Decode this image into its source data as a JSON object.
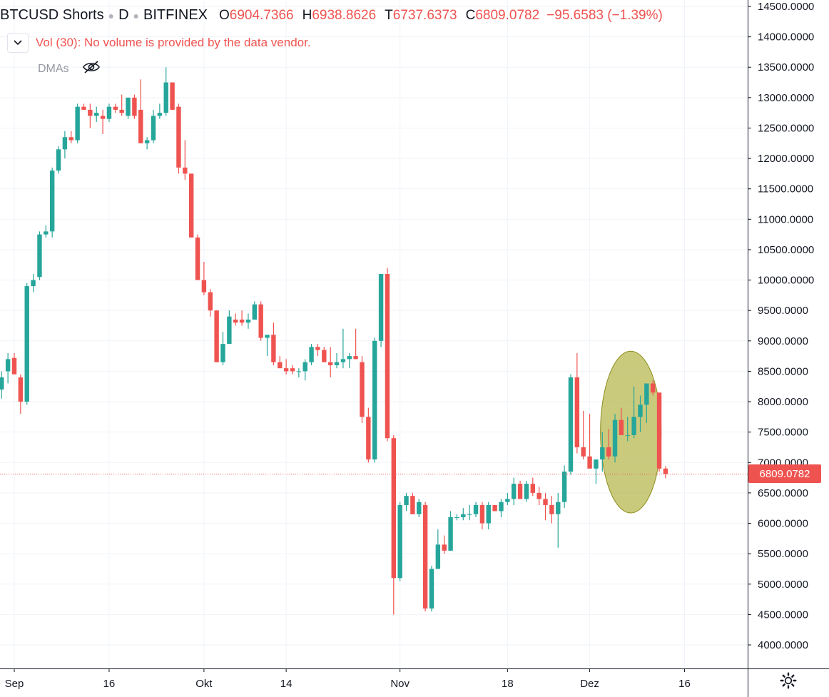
{
  "header": {
    "symbol": "BTCUSD Shorts",
    "interval": "D",
    "exchange": "BITFINEX",
    "open_label": "O",
    "open": "6904.7366",
    "high_label": "H",
    "high": "6938.8626",
    "low_label": "T",
    "low": "6737.6373",
    "close_label": "C",
    "close": "6809.0782",
    "change": "−95.6583 (−1.39%)"
  },
  "volume_note": "Vol (30): No volume is provided by the data vendor.",
  "indicator": "DMAs",
  "icons": {
    "collapse": "chevron-down-icon",
    "visibility": "eye-off-icon",
    "settings": "gear-icon"
  },
  "colors": {
    "up": "#26a69a",
    "down": "#ef5350",
    "highlight": "#b5b54a",
    "grid": "#f0f3fa"
  },
  "last_price_label": "6809.0782",
  "chart_data": {
    "type": "candlestick",
    "ylim": [
      3700,
      14650
    ],
    "y_ticks": [
      "14500.0000",
      "14000.0000",
      "13500.0000",
      "13000.0000",
      "12500.0000",
      "12000.0000",
      "11500.0000",
      "11000.0000",
      "10500.0000",
      "10000.0000",
      "9500.0000",
      "9000.0000",
      "8500.0000",
      "8000.0000",
      "7500.0000",
      "7000.0000",
      "6500.0000",
      "6000.0000",
      "5500.0000",
      "5000.0000",
      "4500.0000",
      "4000.0000"
    ],
    "x_ticks": [
      {
        "label": "Sep",
        "day": 0
      },
      {
        "label": "16",
        "day": 15
      },
      {
        "label": "Okt",
        "day": 30
      },
      {
        "label": "14",
        "day": 43
      },
      {
        "label": "Nov",
        "day": 61
      },
      {
        "label": "18",
        "day": 78
      },
      {
        "label": "Dez",
        "day": 91
      },
      {
        "label": "16",
        "day": 106
      }
    ],
    "last_price": 6809.0782,
    "highlight_ellipse": {
      "center_day": 97.5,
      "center_price": 7500,
      "half_width_days": 4.8,
      "half_height_price": 1330
    },
    "candles": [
      [
        -2,
        8200,
        8500,
        8050,
        8400
      ],
      [
        -1,
        8500,
        8800,
        8300,
        8700
      ],
      [
        0,
        8720,
        8800,
        8480,
        8450
      ],
      [
        1,
        8400,
        8450,
        7800,
        8000
      ],
      [
        2,
        8000,
        9950,
        7950,
        9900
      ],
      [
        3,
        9900,
        10100,
        9800,
        10000
      ],
      [
        4,
        10050,
        10800,
        10000,
        10750
      ],
      [
        5,
        10750,
        10900,
        10700,
        10800
      ],
      [
        6,
        10800,
        11850,
        10700,
        11800
      ],
      [
        7,
        11800,
        12200,
        11750,
        12150
      ],
      [
        8,
        12150,
        12450,
        12000,
        12350
      ],
      [
        9,
        12350,
        12450,
        12250,
        12300
      ],
      [
        10,
        12300,
        12900,
        12250,
        12850
      ],
      [
        11,
        12850,
        12900,
        12800,
        12800
      ],
      [
        12,
        12800,
        12900,
        12500,
        12700
      ],
      [
        13,
        12700,
        12850,
        12600,
        12750
      ],
      [
        14,
        12700,
        12800,
        12400,
        12650
      ],
      [
        15,
        12650,
        12900,
        12600,
        12850
      ],
      [
        16,
        12850,
        12900,
        12750,
        12800
      ],
      [
        17,
        12800,
        13050,
        12700,
        12750
      ],
      [
        18,
        12700,
        13000,
        12650,
        13000
      ],
      [
        19,
        13000,
        13050,
        12650,
        12700
      ],
      [
        20,
        12800,
        13300,
        12250,
        12250
      ],
      [
        21,
        12250,
        12350,
        12150,
        12300
      ],
      [
        22,
        12300,
        12800,
        12250,
        12700
      ],
      [
        23,
        12700,
        12900,
        12650,
        12750
      ],
      [
        24,
        12750,
        13500,
        12700,
        13250
      ],
      [
        25,
        13250,
        13250,
        12800,
        12800
      ],
      [
        26,
        12850,
        12900,
        11750,
        11850
      ],
      [
        27,
        11850,
        12300,
        11650,
        11750
      ],
      [
        28,
        11750,
        11750,
        10700,
        10700
      ],
      [
        29,
        10700,
        10750,
        10000,
        10000
      ],
      [
        30,
        10000,
        10300,
        9750,
        9800
      ],
      [
        31,
        9800,
        9850,
        9400,
        9500
      ],
      [
        32,
        9500,
        9500,
        8650,
        8650
      ],
      [
        33,
        8650,
        9150,
        8600,
        8950
      ],
      [
        34,
        8950,
        9500,
        8950,
        9400
      ],
      [
        35,
        9350,
        9450,
        9250,
        9300
      ],
      [
        36,
        9350,
        9500,
        9250,
        9300
      ],
      [
        37,
        9300,
        9450,
        9200,
        9350
      ],
      [
        38,
        9350,
        9650,
        9350,
        9600
      ],
      [
        39,
        9600,
        9650,
        9000,
        9050
      ],
      [
        40,
        9050,
        9050,
        8750,
        9100
      ],
      [
        41,
        9100,
        9300,
        8600,
        8650
      ],
      [
        42,
        8650,
        8750,
        8550,
        8550
      ],
      [
        43,
        8550,
        8700,
        8450,
        8500
      ],
      [
        44,
        8550,
        8600,
        8450,
        8500
      ],
      [
        45,
        8500,
        8550,
        8400,
        8500
      ],
      [
        46,
        8500,
        8700,
        8350,
        8650
      ],
      [
        47,
        8650,
        8950,
        8600,
        8900
      ],
      [
        48,
        8900,
        8950,
        8750,
        8850
      ],
      [
        49,
        8850,
        8900,
        8650,
        8650
      ],
      [
        50,
        8650,
        8900,
        8400,
        8600
      ],
      [
        51,
        8600,
        8800,
        8550,
        8650
      ],
      [
        52,
        8650,
        9200,
        8550,
        8700
      ],
      [
        53,
        8700,
        8800,
        8550,
        8750
      ],
      [
        54,
        8750,
        9200,
        8700,
        8700
      ],
      [
        55,
        8650,
        8750,
        7650,
        7750
      ],
      [
        56,
        7750,
        7900,
        7000,
        7050
      ],
      [
        57,
        7050,
        9050,
        7000,
        9000
      ],
      [
        58,
        9000,
        10100,
        8900,
        10100
      ],
      [
        59,
        10100,
        10200,
        7350,
        7400
      ],
      [
        60,
        7400,
        7450,
        4500,
        5100
      ],
      [
        61,
        5100,
        6350,
        5050,
        6300
      ],
      [
        62,
        6300,
        6500,
        6200,
        6450
      ],
      [
        63,
        6450,
        6500,
        6150,
        6150
      ],
      [
        64,
        6150,
        6400,
        6100,
        6350
      ],
      [
        65,
        6300,
        6350,
        4550,
        4600
      ],
      [
        66,
        4600,
        5300,
        4550,
        5250
      ],
      [
        67,
        5250,
        5900,
        5250,
        5650
      ],
      [
        68,
        5650,
        5800,
        5500,
        5550
      ],
      [
        69,
        5550,
        6200,
        5550,
        6100
      ],
      [
        70,
        6100,
        6150,
        6050,
        6100
      ],
      [
        71,
        6100,
        6250,
        6050,
        6150
      ],
      [
        72,
        6150,
        6300,
        6050,
        6150
      ],
      [
        73,
        6150,
        6350,
        6100,
        6300
      ],
      [
        74,
        6300,
        6350,
        5900,
        6000
      ],
      [
        75,
        6000,
        6350,
        5900,
        6300
      ],
      [
        76,
        6300,
        6300,
        6200,
        6200
      ],
      [
        77,
        6200,
        6400,
        6100,
        6350
      ],
      [
        78,
        6350,
        6500,
        6300,
        6400
      ],
      [
        79,
        6400,
        6750,
        6300,
        6650
      ],
      [
        80,
        6650,
        6700,
        6400,
        6400
      ],
      [
        81,
        6400,
        6700,
        6350,
        6650
      ],
      [
        82,
        6650,
        6750,
        6450,
        6500
      ],
      [
        83,
        6500,
        6600,
        6300,
        6400
      ],
      [
        84,
        6400,
        6500,
        6050,
        6300
      ],
      [
        85,
        6300,
        6450,
        6000,
        6150
      ],
      [
        86,
        6150,
        6500,
        5600,
        6350
      ],
      [
        87,
        6350,
        6950,
        6250,
        6850
      ],
      [
        88,
        6850,
        8450,
        6800,
        8400
      ],
      [
        89,
        8400,
        8800,
        7150,
        7250
      ],
      [
        90,
        7250,
        7850,
        7050,
        7100
      ],
      [
        91,
        7100,
        7800,
        6900,
        6900
      ],
      [
        92,
        6900,
        7050,
        6650,
        7050
      ],
      [
        93,
        7050,
        7500,
        6850,
        7250
      ],
      [
        94,
        7250,
        7550,
        7050,
        7100
      ],
      [
        95,
        7100,
        7800,
        7000,
        7700
      ],
      [
        96,
        7700,
        7900,
        7450,
        7450
      ],
      [
        97,
        7450,
        7750,
        7350,
        7450
      ],
      [
        98,
        7450,
        8250,
        7400,
        7750
      ],
      [
        99,
        7750,
        8100,
        7500,
        7950
      ],
      [
        100,
        7950,
        8300,
        7650,
        8300
      ],
      [
        101,
        8300,
        8350,
        8100,
        8150
      ],
      [
        102,
        8150,
        8150,
        6850,
        6900
      ],
      [
        103,
        6900,
        6940,
        6740,
        6810
      ]
    ]
  }
}
